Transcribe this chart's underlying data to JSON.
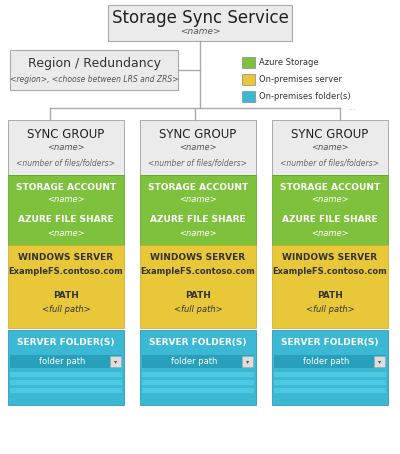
{
  "bg_color": "#ffffff",
  "title": "Storage Sync Service",
  "title_sub": "<name>",
  "region_box": {
    "label": "Region / Redundancy",
    "sub": "<region>, <choose between LRS and ZRS>"
  },
  "legend": [
    {
      "color": "#7dc13d",
      "label": "Azure Storage"
    },
    {
      "color": "#e8c838",
      "label": "On-premises server"
    },
    {
      "color": "#3ab8d4",
      "label": "On-premises folder(s)"
    }
  ],
  "sync_groups": [
    {
      "title": "SYNC GROUP",
      "name": "<name>",
      "files": "<number of files/folders>",
      "storage_account": "STORAGE ACCOUNT",
      "storage_name": "<name>",
      "azure_share": "AZURE FILE SHARE",
      "azure_name": "<name>",
      "server_label": "WINDOWS SERVER",
      "server_name": "ExampleFS.contoso.com",
      "path_label": "PATH",
      "path_value": "<full path>",
      "folder_label": "SERVER FOLDER(S)",
      "folder_value": "folder path"
    },
    {
      "title": "SYNC GROUP",
      "name": "<name>",
      "files": "<number of files/folders>",
      "storage_account": "STORAGE ACCOUNT",
      "storage_name": "<name>",
      "azure_share": "AZURE FILE SHARE",
      "azure_name": "<name>",
      "server_label": "WINDOWS SERVER",
      "server_name": "ExampleFS.contoso.com",
      "path_label": "PATH",
      "path_value": "<full path>",
      "folder_label": "SERVER FOLDER(S)",
      "folder_value": "folder path"
    },
    {
      "title": "SYNC GROUP",
      "name": "<name>",
      "files": "<number of files/folders>",
      "storage_account": "STORAGE ACCOUNT",
      "storage_name": "<name>",
      "azure_share": "AZURE FILE SHARE",
      "azure_name": "<name>",
      "server_label": "WINDOWS SERVER",
      "server_name": "ExampleFS.contoso.com",
      "path_label": "PATH",
      "path_value": "<full path>",
      "folder_label": "SERVER FOLDER(S)",
      "folder_value": "folder path"
    }
  ],
  "color_green": "#7dc13d",
  "color_yellow": "#e8c838",
  "color_cyan": "#3ab8d4",
  "color_cyan_dark": "#28a0bc",
  "color_cyan_mid": "#4dc8e0",
  "color_gray_box": "#ebebeb",
  "color_gray_border": "#aaaaaa",
  "color_white": "#ffffff",
  "color_text_dark": "#333333",
  "color_text_white": "#ffffff"
}
